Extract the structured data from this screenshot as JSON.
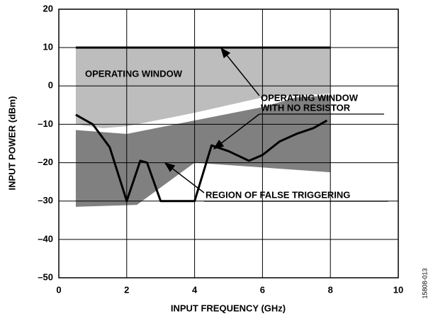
{
  "chart_data": {
    "type": "line",
    "xlabel": "INPUT FREQUENCY (GHz)",
    "ylabel": "INPUT POWER (dBm)",
    "xlim": [
      0,
      10
    ],
    "ylim": [
      -50,
      20
    ],
    "xticks": [
      0,
      2,
      4,
      6,
      8,
      10
    ],
    "yticks": [
      {
        "value": -50,
        "label": "–50"
      },
      {
        "value": -40,
        "label": "–40"
      },
      {
        "value": -30,
        "label": "–30"
      },
      {
        "value": -20,
        "label": "–20"
      },
      {
        "value": -10,
        "label": "–10"
      },
      0,
      10,
      20
    ],
    "grid": true,
    "regions": [
      {
        "color": "#bdbdbd",
        "x": [
          0.5,
          8,
          8,
          6,
          4,
          2,
          1.3,
          0.5
        ],
        "values": [
          10,
          10,
          -2,
          -3,
          -7,
          -10.5,
          -11,
          -10
        ]
      },
      {
        "color": "#808080",
        "x": [
          0.5,
          2,
          4,
          6,
          7,
          8,
          8,
          4,
          2.3,
          0.5
        ],
        "values": [
          -11.5,
          -12.5,
          -9,
          -5.5,
          -3,
          -2.5,
          -22.5,
          -20,
          -31,
          -31.5
        ]
      }
    ],
    "series": [
      {
        "color": "#000000",
        "x": [
          0.5,
          8
        ],
        "values": [
          10,
          10
        ]
      },
      {
        "color": "#000000",
        "x": [
          0.5,
          1,
          1.5,
          2,
          2.4,
          2.6,
          3,
          4,
          4.5,
          5,
          5.6,
          6,
          6.5,
          7,
          7.5,
          7.9
        ],
        "values": [
          -7.5,
          -10,
          -16,
          -30,
          -19.5,
          -20,
          -30,
          -30,
          -15.5,
          -17,
          -19.5,
          -18,
          -14.5,
          -12.5,
          -11,
          -9
        ]
      }
    ],
    "annotations": [
      "OPERATING WINDOW",
      "OPERATING WINDOW",
      "WITH NO RESISTOR",
      "REGION OF FALSE TRIGGERING"
    ],
    "figure_id": "15808-013"
  }
}
